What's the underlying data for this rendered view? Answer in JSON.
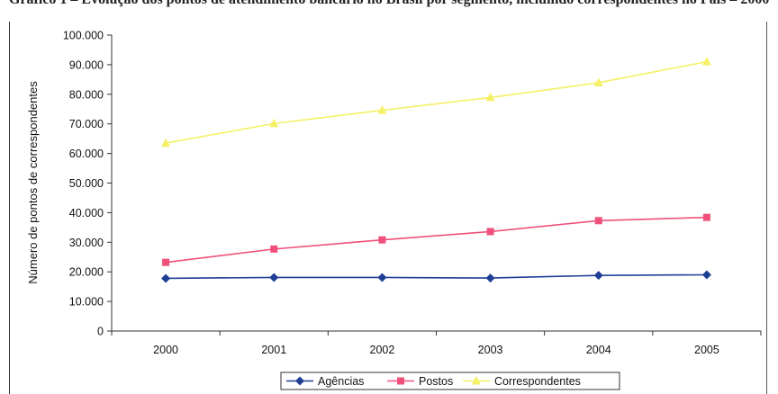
{
  "page": {
    "caption_parts": [
      "Gráfico 1 – Evolução dos pontos de atendimento bancário no Brasil por segmento, incluindo correspondentes no País – 2000 a 2005"
    ]
  },
  "chart_data": {
    "type": "line",
    "title": "",
    "xlabel": "",
    "ylabel": "Número de pontos de correspondentes",
    "categories": [
      "2000",
      "2001",
      "2002",
      "2003",
      "2004",
      "2005"
    ],
    "ylim": [
      0,
      100000
    ],
    "yticks": [
      0,
      10000,
      20000,
      30000,
      40000,
      50000,
      60000,
      70000,
      80000,
      90000,
      100000
    ],
    "ytick_labels": [
      "0",
      "10.000",
      "20.000",
      "30.000",
      "40.000",
      "50.000",
      "60.000",
      "70.000",
      "80.000",
      "90.000",
      "100.000"
    ],
    "grid": false,
    "legend_position": "bottom",
    "series": [
      {
        "name": "Agências",
        "color": "#1f3f95",
        "marker": "diamond",
        "values": [
          17800,
          18100,
          18100,
          17900,
          18800,
          19000
        ]
      },
      {
        "name": "Postos",
        "color": "#f0507a",
        "marker": "square",
        "values": [
          23200,
          27700,
          30800,
          33600,
          37300,
          38400
        ]
      },
      {
        "name": "Correspondentes",
        "color": "#f5f065",
        "marker": "triangle",
        "values": [
          63500,
          70100,
          74600,
          78900,
          83900,
          91000
        ]
      }
    ]
  }
}
